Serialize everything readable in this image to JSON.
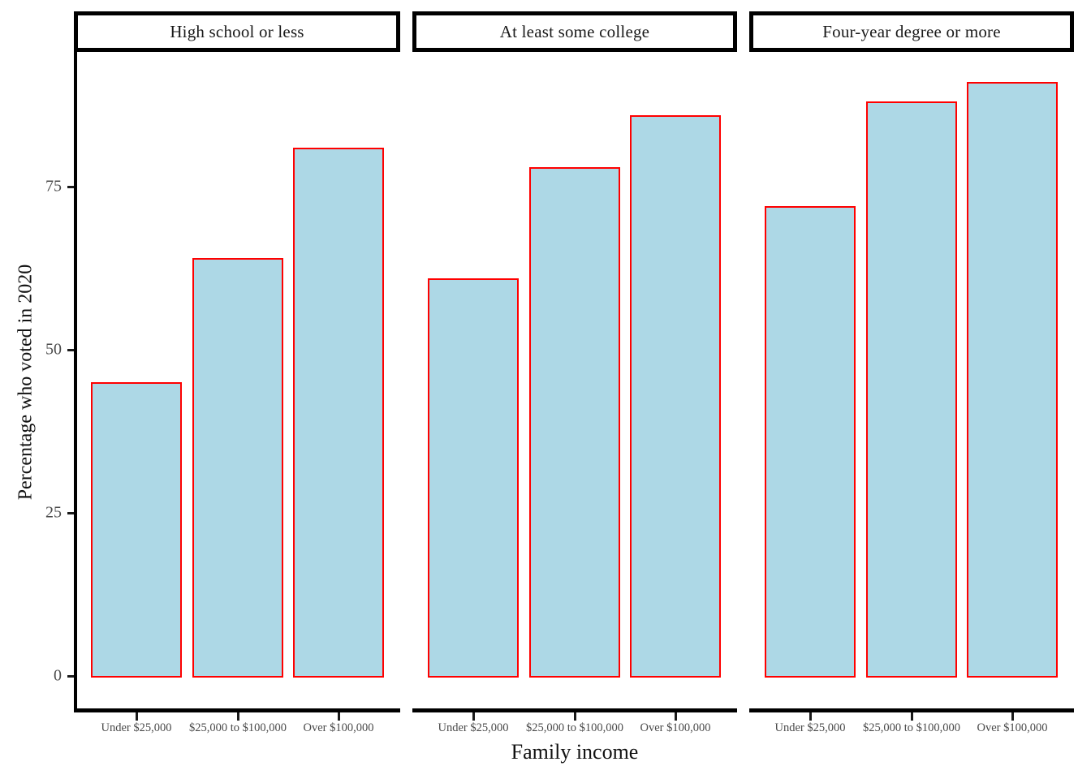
{
  "chart_data": {
    "type": "bar",
    "title": "",
    "xlabel": "Family income",
    "ylabel": "Percentage who voted in 2020",
    "categories": [
      "Under $25,000",
      "$25,000 to $100,000",
      "Over $100,000"
    ],
    "facets": [
      {
        "label": "High school or less",
        "values": [
          45,
          64,
          81
        ]
      },
      {
        "label": "At least some college",
        "values": [
          61,
          78,
          86
        ]
      },
      {
        "label": "Four-year degree or more",
        "values": [
          72,
          88,
          91
        ]
      }
    ],
    "y_ticks": [
      0,
      25,
      50,
      75
    ],
    "y_tick_labels": [
      "0",
      "25",
      "50",
      "75"
    ],
    "ylim": [
      0,
      96
    ],
    "grid": false,
    "legend": "none",
    "colors": {
      "bar_fill": "#ADD8E6",
      "bar_border": "#FF0000",
      "axis_line": "#000000",
      "strip_border": "#000000",
      "strip_fill": "#FFFFFF",
      "tick_text": "#4a4a4a",
      "title_text": "#111111"
    }
  }
}
